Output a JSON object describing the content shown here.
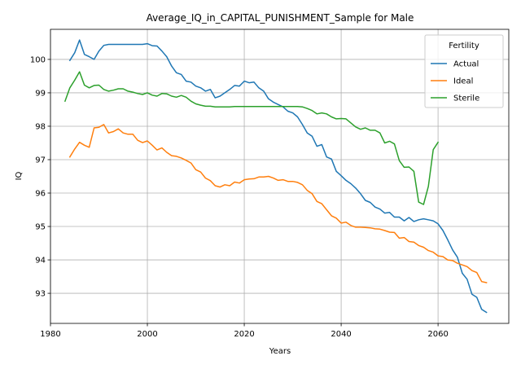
{
  "chart_data": {
    "type": "line",
    "title": "Average_IQ_in_CAPITAL_PUNISHMENT_Sample for Male",
    "xlabel": "Years",
    "ylabel": "IQ",
    "xlim": [
      1980.0,
      2074.6
    ],
    "ylim": [
      92.1,
      100.9
    ],
    "xticks": [
      1980,
      2000,
      2020,
      2040,
      2060
    ],
    "yticks": [
      93,
      94,
      95,
      96,
      97,
      98,
      99,
      100
    ],
    "grid": true,
    "legend": {
      "title": "Fertility",
      "position": "upper right"
    },
    "series": [
      {
        "name": "Actual",
        "color": "#1f77b4",
        "x": [
          1984,
          1985,
          1986,
          1987,
          1988,
          1989,
          1990,
          1991,
          1992,
          1993,
          1994,
          1995,
          1996,
          1997,
          1998,
          1999,
          2000,
          2001,
          2002,
          2003,
          2004,
          2005,
          2006,
          2007,
          2008,
          2009,
          2010,
          2011,
          2012,
          2013,
          2014,
          2015,
          2016,
          2017,
          2018,
          2019,
          2020,
          2021,
          2022,
          2023,
          2024,
          2025,
          2026,
          2027,
          2028,
          2029,
          2030,
          2031,
          2032,
          2033,
          2034,
          2035,
          2036,
          2037,
          2038,
          2039,
          2040,
          2041,
          2042,
          2043,
          2044,
          2045,
          2046,
          2047,
          2048,
          2049,
          2050,
          2051,
          2052,
          2053,
          2054,
          2055,
          2056,
          2057,
          2058,
          2059,
          2060,
          2061,
          2062,
          2063,
          2064,
          2065,
          2066,
          2067,
          2068,
          2069,
          2070
        ],
        "y": [
          99.97,
          100.2,
          100.58,
          100.15,
          100.08,
          100.0,
          100.25,
          100.42,
          100.45,
          100.45,
          100.45,
          100.45,
          100.45,
          100.45,
          100.45,
          100.45,
          100.47,
          100.41,
          100.4,
          100.25,
          100.08,
          99.8,
          99.6,
          99.55,
          99.35,
          99.32,
          99.2,
          99.15,
          99.05,
          99.1,
          98.85,
          98.9,
          99.0,
          99.1,
          99.22,
          99.2,
          99.35,
          99.3,
          99.32,
          99.15,
          99.05,
          98.82,
          98.72,
          98.65,
          98.58,
          98.45,
          98.4,
          98.28,
          98.05,
          97.8,
          97.7,
          97.4,
          97.45,
          97.08,
          97.02,
          96.65,
          96.52,
          96.38,
          96.28,
          96.15,
          95.98,
          95.78,
          95.72,
          95.58,
          95.52,
          95.4,
          95.42,
          95.28,
          95.28,
          95.17,
          95.27,
          95.15,
          95.2,
          95.23,
          95.2,
          95.17,
          95.08,
          94.88,
          94.6,
          94.3,
          94.08,
          93.6,
          93.42,
          92.97,
          92.88,
          92.52,
          92.43
        ]
      },
      {
        "name": "Ideal",
        "color": "#ff7f0e",
        "x": [
          1984,
          1985,
          1986,
          1987,
          1988,
          1989,
          1990,
          1991,
          1992,
          1993,
          1994,
          1995,
          1996,
          1997,
          1998,
          1999,
          2000,
          2001,
          2002,
          2003,
          2004,
          2005,
          2006,
          2007,
          2008,
          2009,
          2010,
          2011,
          2012,
          2013,
          2014,
          2015,
          2016,
          2017,
          2018,
          2019,
          2020,
          2021,
          2022,
          2023,
          2024,
          2025,
          2026,
          2027,
          2028,
          2029,
          2030,
          2031,
          2032,
          2033,
          2034,
          2035,
          2036,
          2037,
          2038,
          2039,
          2040,
          2041,
          2042,
          2043,
          2044,
          2045,
          2046,
          2047,
          2048,
          2049,
          2050,
          2051,
          2052,
          2053,
          2054,
          2055,
          2056,
          2057,
          2058,
          2059,
          2060,
          2061,
          2062,
          2063,
          2064,
          2065,
          2066,
          2067,
          2068,
          2069,
          2070
        ],
        "y": [
          97.08,
          97.32,
          97.52,
          97.43,
          97.37,
          97.95,
          97.97,
          98.05,
          97.8,
          97.84,
          97.92,
          97.8,
          97.76,
          97.76,
          97.58,
          97.51,
          97.56,
          97.43,
          97.29,
          97.35,
          97.22,
          97.12,
          97.1,
          97.05,
          96.98,
          96.9,
          96.7,
          96.63,
          96.45,
          96.37,
          96.22,
          96.18,
          96.25,
          96.22,
          96.33,
          96.3,
          96.4,
          96.42,
          96.43,
          96.48,
          96.48,
          96.5,
          96.45,
          96.38,
          96.4,
          96.35,
          96.35,
          96.32,
          96.25,
          96.08,
          95.98,
          95.75,
          95.68,
          95.5,
          95.32,
          95.25,
          95.1,
          95.13,
          95.03,
          94.98,
          94.98,
          94.97,
          94.96,
          94.93,
          94.92,
          94.88,
          94.83,
          94.82,
          94.65,
          94.67,
          94.55,
          94.53,
          94.43,
          94.38,
          94.28,
          94.23,
          94.12,
          94.1,
          94.0,
          93.98,
          93.9,
          93.85,
          93.8,
          93.68,
          93.62,
          93.35,
          93.32
        ]
      },
      {
        "name": "Sterile",
        "color": "#2ca02c",
        "x": [
          1983,
          1984,
          1985,
          1986,
          1987,
          1988,
          1989,
          1990,
          1991,
          1992,
          1993,
          1994,
          1995,
          1996,
          1997,
          1998,
          1999,
          2000,
          2001,
          2002,
          2003,
          2004,
          2005,
          2006,
          2007,
          2008,
          2009,
          2010,
          2011,
          2012,
          2013,
          2014,
          2015,
          2016,
          2017,
          2018,
          2019,
          2020,
          2021,
          2022,
          2023,
          2024,
          2025,
          2026,
          2027,
          2028,
          2029,
          2030,
          2031,
          2032,
          2033,
          2034,
          2035,
          2036,
          2037,
          2038,
          2039,
          2040,
          2041,
          2042,
          2043,
          2044,
          2045,
          2046,
          2047,
          2048,
          2049,
          2050,
          2051,
          2052,
          2053,
          2054,
          2055,
          2056,
          2057,
          2058,
          2059,
          2060
        ],
        "y": [
          98.75,
          99.15,
          99.38,
          99.63,
          99.23,
          99.15,
          99.22,
          99.23,
          99.1,
          99.05,
          99.08,
          99.12,
          99.12,
          99.05,
          99.02,
          98.98,
          98.95,
          99.0,
          98.93,
          98.9,
          98.98,
          98.97,
          98.9,
          98.87,
          98.92,
          98.87,
          98.75,
          98.67,
          98.63,
          98.6,
          98.6,
          98.58,
          98.58,
          98.58,
          98.58,
          98.59,
          98.59,
          98.59,
          98.59,
          98.59,
          98.59,
          98.59,
          98.59,
          98.59,
          98.59,
          98.59,
          98.59,
          98.59,
          98.59,
          98.58,
          98.53,
          98.47,
          98.37,
          98.4,
          98.37,
          98.28,
          98.22,
          98.23,
          98.22,
          98.1,
          97.98,
          97.91,
          97.95,
          97.88,
          97.88,
          97.8,
          97.5,
          97.55,
          97.47,
          96.97,
          96.77,
          96.78,
          96.65,
          95.73,
          95.66,
          96.2,
          97.3,
          97.52
        ]
      }
    ]
  }
}
